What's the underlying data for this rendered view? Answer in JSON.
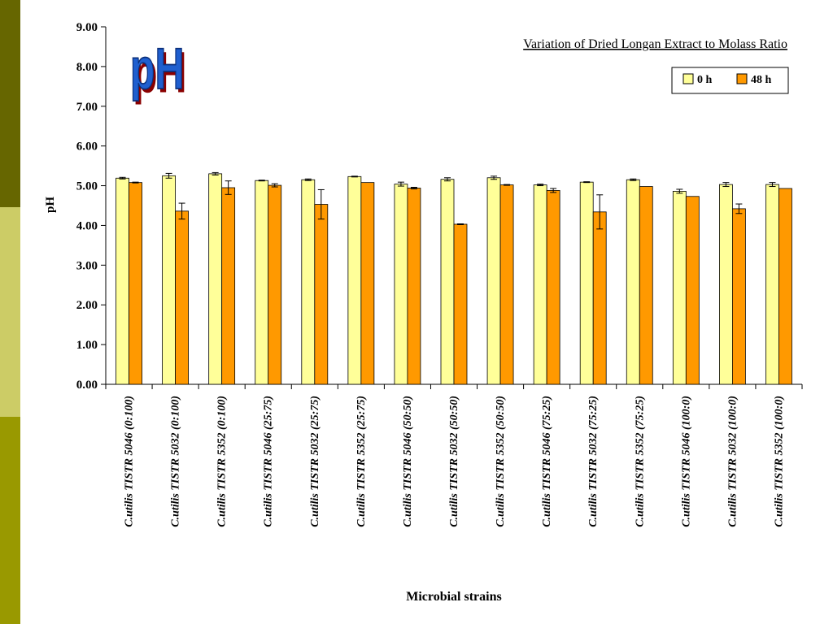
{
  "slide": {
    "badge_text": "pH",
    "colors": {
      "band_top": "#666600",
      "band_mid": "#cccc66",
      "band_bottom": "#999900",
      "badge_blue": "#1f5fcf",
      "badge_shadow": "#8a0000"
    }
  },
  "chart_data": {
    "type": "bar",
    "title": "Variation of Dried Longan Extract to Molass Ratio",
    "xlabel": "Microbial strains",
    "ylabel": "pH",
    "ylim": [
      0,
      9
    ],
    "yticks": [
      "0.00",
      "1.00",
      "2.00",
      "3.00",
      "4.00",
      "5.00",
      "6.00",
      "7.00",
      "8.00",
      "9.00"
    ],
    "grid": false,
    "legend_position": "top-right",
    "categories": [
      "C.utilis TISTR 5046 (0:100)",
      "C.utilis TISTR 5032 (0:100)",
      "C.utilis TISTR 5352 (0:100)",
      "C.utilis TISTR 5046 (25:75)",
      "C.utilis TISTR 5032 (25:75)",
      "C.utilis TISTR 5352 (25:75)",
      "C.utilis TISTR 5046 (50:50)",
      "C.utilis TISTR 5032 (50:50)",
      "C.utilis TISTR 5352 (50:50)",
      "C.utilis TISTR 5046 (75:25)",
      "C.utilis TISTR 5032 (75:25)",
      "C.utilis TISTR 5352 (75:25)",
      "C.utilis TISTR 5046 (100:0)",
      "C.utilis TISTR 5032 (100:0)",
      "C.utilis TISTR 5352 (100:0)"
    ],
    "series": [
      {
        "name": "0 h",
        "color": "#ffff99",
        "values": [
          5.19,
          5.25,
          5.3,
          5.13,
          5.15,
          5.23,
          5.04,
          5.16,
          5.2,
          5.02,
          5.09,
          5.15,
          4.86,
          5.03,
          5.03
        ],
        "errors": [
          0.02,
          0.06,
          0.03,
          0.01,
          0.02,
          0.01,
          0.05,
          0.04,
          0.04,
          0.02,
          0.01,
          0.02,
          0.05,
          0.05,
          0.05
        ]
      },
      {
        "name": "48 h",
        "color": "#ff9900",
        "values": [
          5.08,
          4.36,
          4.95,
          5.01,
          4.53,
          5.08,
          4.94,
          4.03,
          5.02,
          4.88,
          4.34,
          4.98,
          4.73,
          4.42,
          4.93
        ],
        "errors": [
          0.01,
          0.2,
          0.17,
          0.04,
          0.37,
          0.0,
          0.02,
          0.01,
          0.01,
          0.05,
          0.43,
          0.0,
          0.0,
          0.12,
          0.0
        ]
      }
    ]
  }
}
